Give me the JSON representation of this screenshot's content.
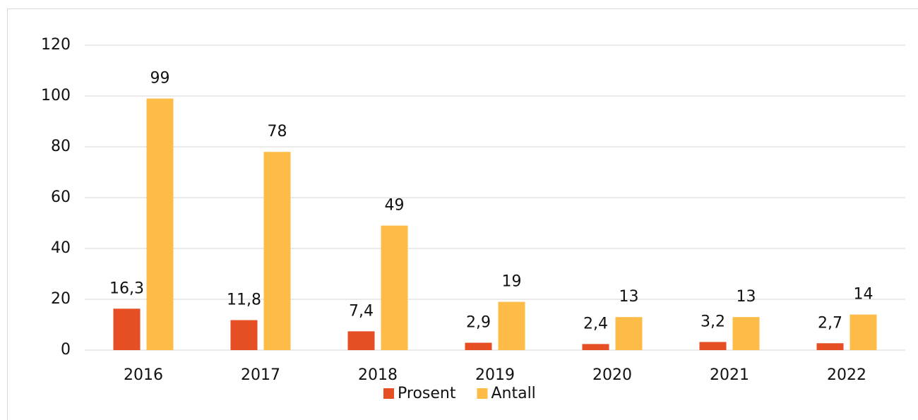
{
  "chart_data": {
    "type": "bar",
    "categories": [
      "2016",
      "2017",
      "2018",
      "2019",
      "2020",
      "2021",
      "2022"
    ],
    "series": [
      {
        "name": "Prosent",
        "color": "#e64e24",
        "values": [
          16.3,
          11.8,
          7.4,
          2.9,
          2.4,
          3.2,
          2.7
        ],
        "value_labels": [
          "16,3",
          "11,8",
          "7,4",
          "2,9",
          "2,4",
          "3,2",
          "2,7"
        ]
      },
      {
        "name": "Antall",
        "color": "#fdbb47",
        "values": [
          99,
          78,
          49,
          19,
          13,
          13,
          14
        ]
      }
    ],
    "ylim": [
      0,
      120
    ],
    "yticks": [
      0,
      20,
      40,
      60,
      80,
      100,
      120
    ],
    "grid": true,
    "legend": "bottom"
  }
}
